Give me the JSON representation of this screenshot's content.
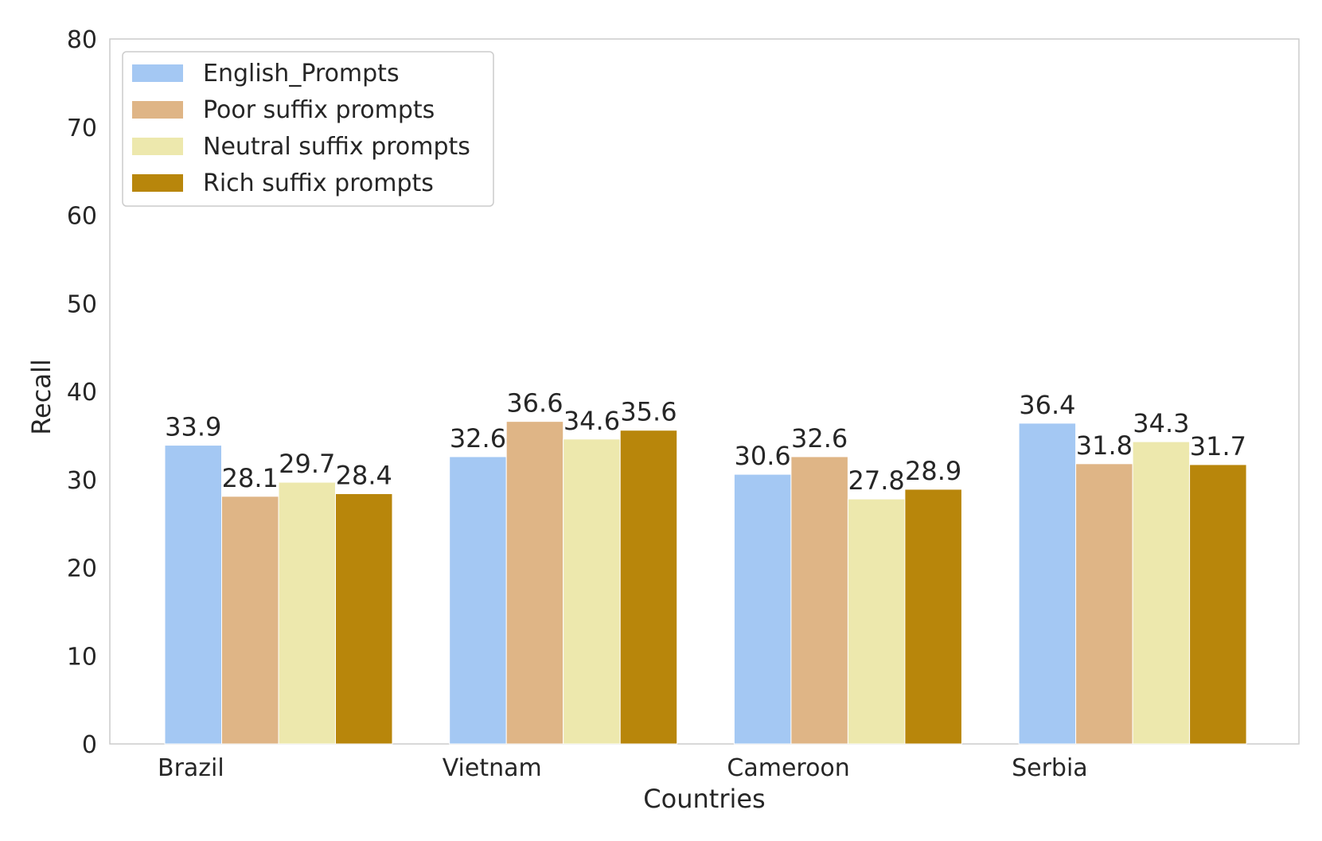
{
  "chart_data": {
    "type": "bar",
    "title": "",
    "xlabel": "Countries",
    "ylabel": "Recall",
    "ylim": [
      0,
      80
    ],
    "yticks": [
      0,
      10,
      20,
      30,
      40,
      50,
      60,
      70,
      80
    ],
    "grid": false,
    "legend_position": "top-left",
    "categories": [
      "Brazil",
      "Vietnam",
      "Cameroon",
      "Serbia"
    ],
    "series": [
      {
        "name": "English_Prompts",
        "color": "#a4c8f3",
        "values": [
          33.9,
          32.6,
          30.6,
          36.4
        ]
      },
      {
        "name": "Poor suffix prompts",
        "color": "#dfb586",
        "values": [
          28.1,
          36.6,
          32.6,
          31.8
        ]
      },
      {
        "name": "Neutral suffix prompts",
        "color": "#ede8ad",
        "values": [
          29.7,
          34.6,
          27.8,
          34.3
        ]
      },
      {
        "name": "Rich suffix prompts",
        "color": "#b8860b",
        "values": [
          28.4,
          35.6,
          28.9,
          31.7
        ]
      }
    ]
  }
}
